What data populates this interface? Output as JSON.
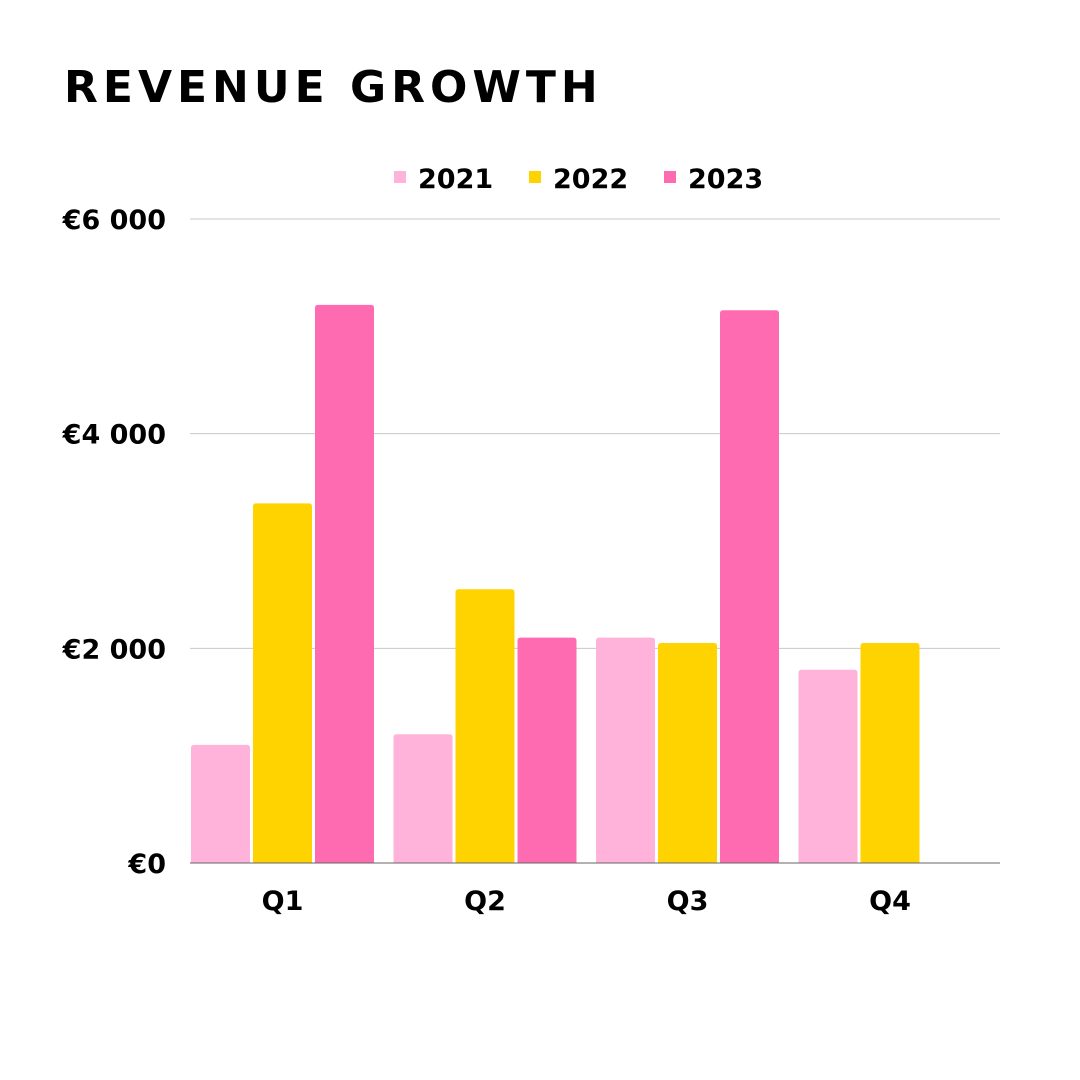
{
  "chart_data": {
    "type": "bar",
    "title": "REVENUE GROWTH",
    "categories": [
      "Q1",
      "Q2",
      "Q3",
      "Q4"
    ],
    "series": [
      {
        "name": "2021",
        "color": "#FFB3DB",
        "values": [
          1100,
          1200,
          2100,
          1800
        ]
      },
      {
        "name": "2022",
        "color": "#FFD300",
        "values": [
          3350,
          2550,
          2050,
          2050
        ]
      },
      {
        "name": "2023",
        "color": "#FF6BB0",
        "values": [
          5200,
          2100,
          5150,
          null
        ]
      }
    ],
    "ylim": [
      0,
      6000
    ],
    "yticks": [
      0,
      2000,
      4000,
      6000
    ],
    "ytick_labels": [
      "€0",
      "€2 000",
      "€4 000",
      "€6 000"
    ],
    "xlabel": "",
    "ylabel": "",
    "grid": true,
    "legend": "top-center"
  }
}
